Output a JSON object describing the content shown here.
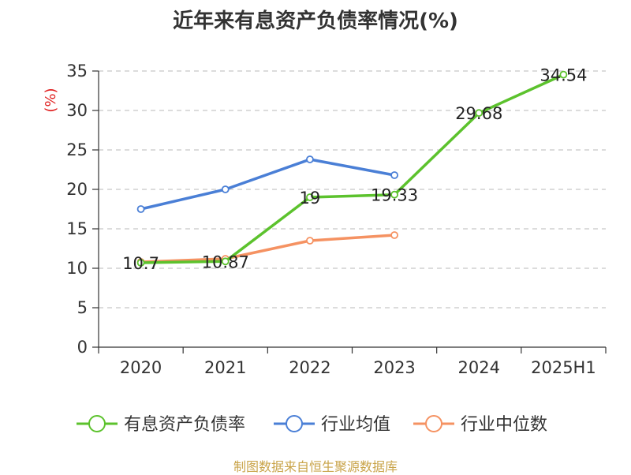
{
  "title": "近年来有息资产负债率情况(%)",
  "source": "制图数据来自恒生聚源数据库",
  "chart_data": {
    "type": "line",
    "title": "近年来有息资产负债率情况(%)",
    "ylabel": "(%)",
    "xlabel": "",
    "categories": [
      "2020",
      "2021",
      "2022",
      "2023",
      "2024",
      "2025H1"
    ],
    "ylim": [
      0,
      35
    ],
    "yticks": [
      0,
      5,
      10,
      15,
      20,
      25,
      30,
      35
    ],
    "grid": true,
    "legend_position": "bottom",
    "series": [
      {
        "name": "有息资产负债率",
        "color": "#5cc22d",
        "values": [
          10.7,
          10.87,
          19,
          19.33,
          29.68,
          34.54
        ],
        "labels": [
          "10.7",
          "10.87",
          "19",
          "19.33",
          "29.68",
          "34.54"
        ]
      },
      {
        "name": "行业均值",
        "color": "#4a7fd6",
        "values": [
          17.5,
          20.0,
          23.8,
          21.8,
          null,
          null
        ]
      },
      {
        "name": "行业中位数",
        "color": "#f59262",
        "values": [
          10.8,
          11.2,
          13.5,
          14.2,
          null,
          null
        ]
      }
    ]
  }
}
